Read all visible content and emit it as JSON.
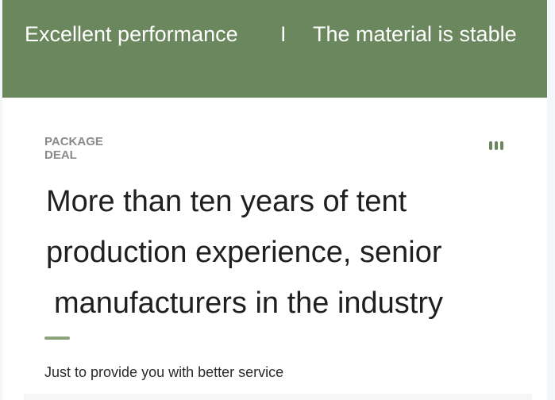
{
  "banner": {
    "left": "Excellent performance",
    "separator": "I",
    "right": "The material is stable",
    "color": "#6b875d"
  },
  "section": {
    "label_line1": "PACKAGE",
    "label_line2": "DEAL",
    "menu_icon": "three-bars-icon",
    "title_lines": [
      "More than ten years of tent",
      "production experience, senior",
      "manufacturers in the industry"
    ],
    "subtitle": "Just to provide you with better service"
  }
}
